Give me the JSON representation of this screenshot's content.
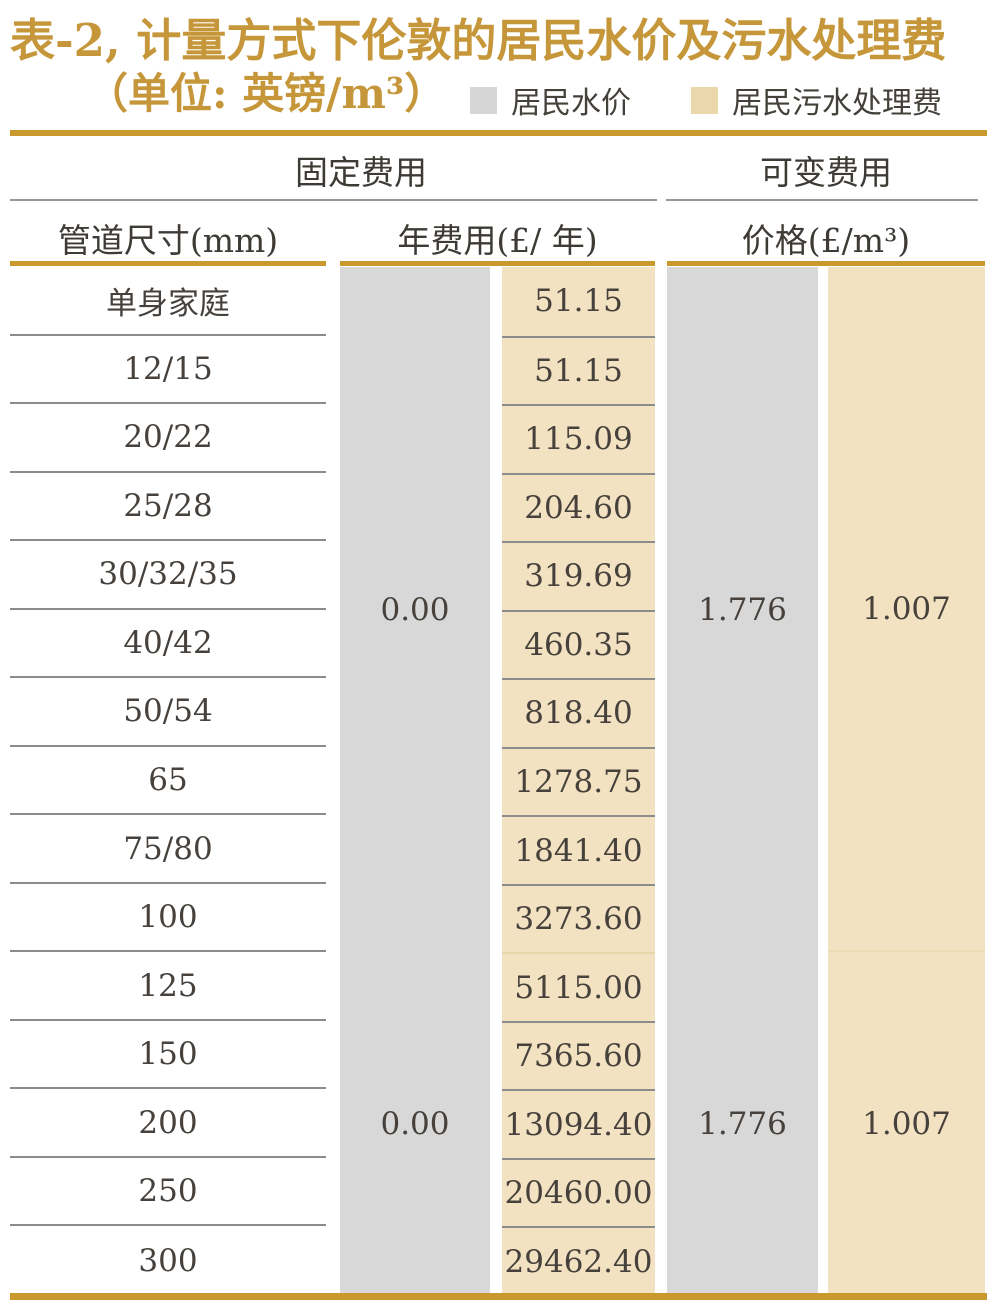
{
  "title": {
    "line1": "表-2, 计量方式下伦敦的居民水价及污水处理费",
    "line2": "（单位: 英镑/m³）"
  },
  "legend": {
    "water": {
      "label": "居民水价",
      "color": "#d6d6d6"
    },
    "sewage": {
      "label": "居民污水处理费",
      "color": "#ead7ab"
    }
  },
  "header": {
    "group_fixed": "固定费用",
    "group_variable": "可变费用",
    "col_pipe": "管道尺寸(mm)",
    "col_annual": "年费用(£/ 年)",
    "col_price": "价格(£/m³)"
  },
  "merged": {
    "water_fixed_top": "0.00",
    "water_fixed_bottom": "0.00",
    "water_price_top": "1.776",
    "water_price_bottom": "1.776",
    "sewage_price_top": "1.007",
    "sewage_price_bottom": "1.007"
  },
  "colors": {
    "gold": "#c9992e",
    "gray_band": "#d8d8d8",
    "tan_band": "#f3e2c1",
    "text": "#46413c"
  },
  "chart_data": {
    "type": "table",
    "title": "表-2, 计量方式下伦敦的居民水价及污水处理费",
    "unit": "英镑/m³",
    "legend_entries": [
      "居民水价",
      "居民污水处理费"
    ],
    "column_groups": [
      "固定费用",
      "可变费用"
    ],
    "columns": [
      "管道尺寸(mm)",
      "固定费用-年费用(£/年)-居民水价",
      "固定费用-年费用(£/年)-居民污水处理费",
      "可变费用-价格(£/m³)-居民水价",
      "可变费用-价格(£/m³)-居民污水处理费"
    ],
    "split_after_row": 10,
    "rows": [
      {
        "pipe": "单身家庭",
        "water_annual": 0.0,
        "sewage_annual": 51.15,
        "water_price": 1.776,
        "sewage_price": 1.007
      },
      {
        "pipe": "12/15",
        "water_annual": 0.0,
        "sewage_annual": 51.15,
        "water_price": 1.776,
        "sewage_price": 1.007
      },
      {
        "pipe": "20/22",
        "water_annual": 0.0,
        "sewage_annual": 115.09,
        "water_price": 1.776,
        "sewage_price": 1.007
      },
      {
        "pipe": "25/28",
        "water_annual": 0.0,
        "sewage_annual": 204.6,
        "water_price": 1.776,
        "sewage_price": 1.007
      },
      {
        "pipe": "30/32/35",
        "water_annual": 0.0,
        "sewage_annual": 319.69,
        "water_price": 1.776,
        "sewage_price": 1.007
      },
      {
        "pipe": "40/42",
        "water_annual": 0.0,
        "sewage_annual": 460.35,
        "water_price": 1.776,
        "sewage_price": 1.007
      },
      {
        "pipe": "50/54",
        "water_annual": 0.0,
        "sewage_annual": 818.4,
        "water_price": 1.776,
        "sewage_price": 1.007
      },
      {
        "pipe": "65",
        "water_annual": 0.0,
        "sewage_annual": 1278.75,
        "water_price": 1.776,
        "sewage_price": 1.007
      },
      {
        "pipe": "75/80",
        "water_annual": 0.0,
        "sewage_annual": 1841.4,
        "water_price": 1.776,
        "sewage_price": 1.007
      },
      {
        "pipe": "100",
        "water_annual": 0.0,
        "sewage_annual": 3273.6,
        "water_price": 1.776,
        "sewage_price": 1.007
      },
      {
        "pipe": "125",
        "water_annual": 0.0,
        "sewage_annual": 5115.0,
        "water_price": 1.776,
        "sewage_price": 1.007
      },
      {
        "pipe": "150",
        "water_annual": 0.0,
        "sewage_annual": 7365.6,
        "water_price": 1.776,
        "sewage_price": 1.007
      },
      {
        "pipe": "200",
        "water_annual": 0.0,
        "sewage_annual": 13094.4,
        "water_price": 1.776,
        "sewage_price": 1.007
      },
      {
        "pipe": "250",
        "water_annual": 0.0,
        "sewage_annual": 20460.0,
        "water_price": 1.776,
        "sewage_price": 1.007
      },
      {
        "pipe": "300",
        "water_annual": 0.0,
        "sewage_annual": 29462.4,
        "water_price": 1.776,
        "sewage_price": 1.007
      }
    ],
    "cell_text": {
      "sewage_annual": [
        "51.15",
        "51.15",
        "115.09",
        "204.60",
        "319.69",
        "460.35",
        "818.40",
        "1278.75",
        "1841.40",
        "3273.60",
        "5115.00",
        "7365.60",
        "13094.40",
        "20460.00",
        "29462.40"
      ]
    }
  }
}
